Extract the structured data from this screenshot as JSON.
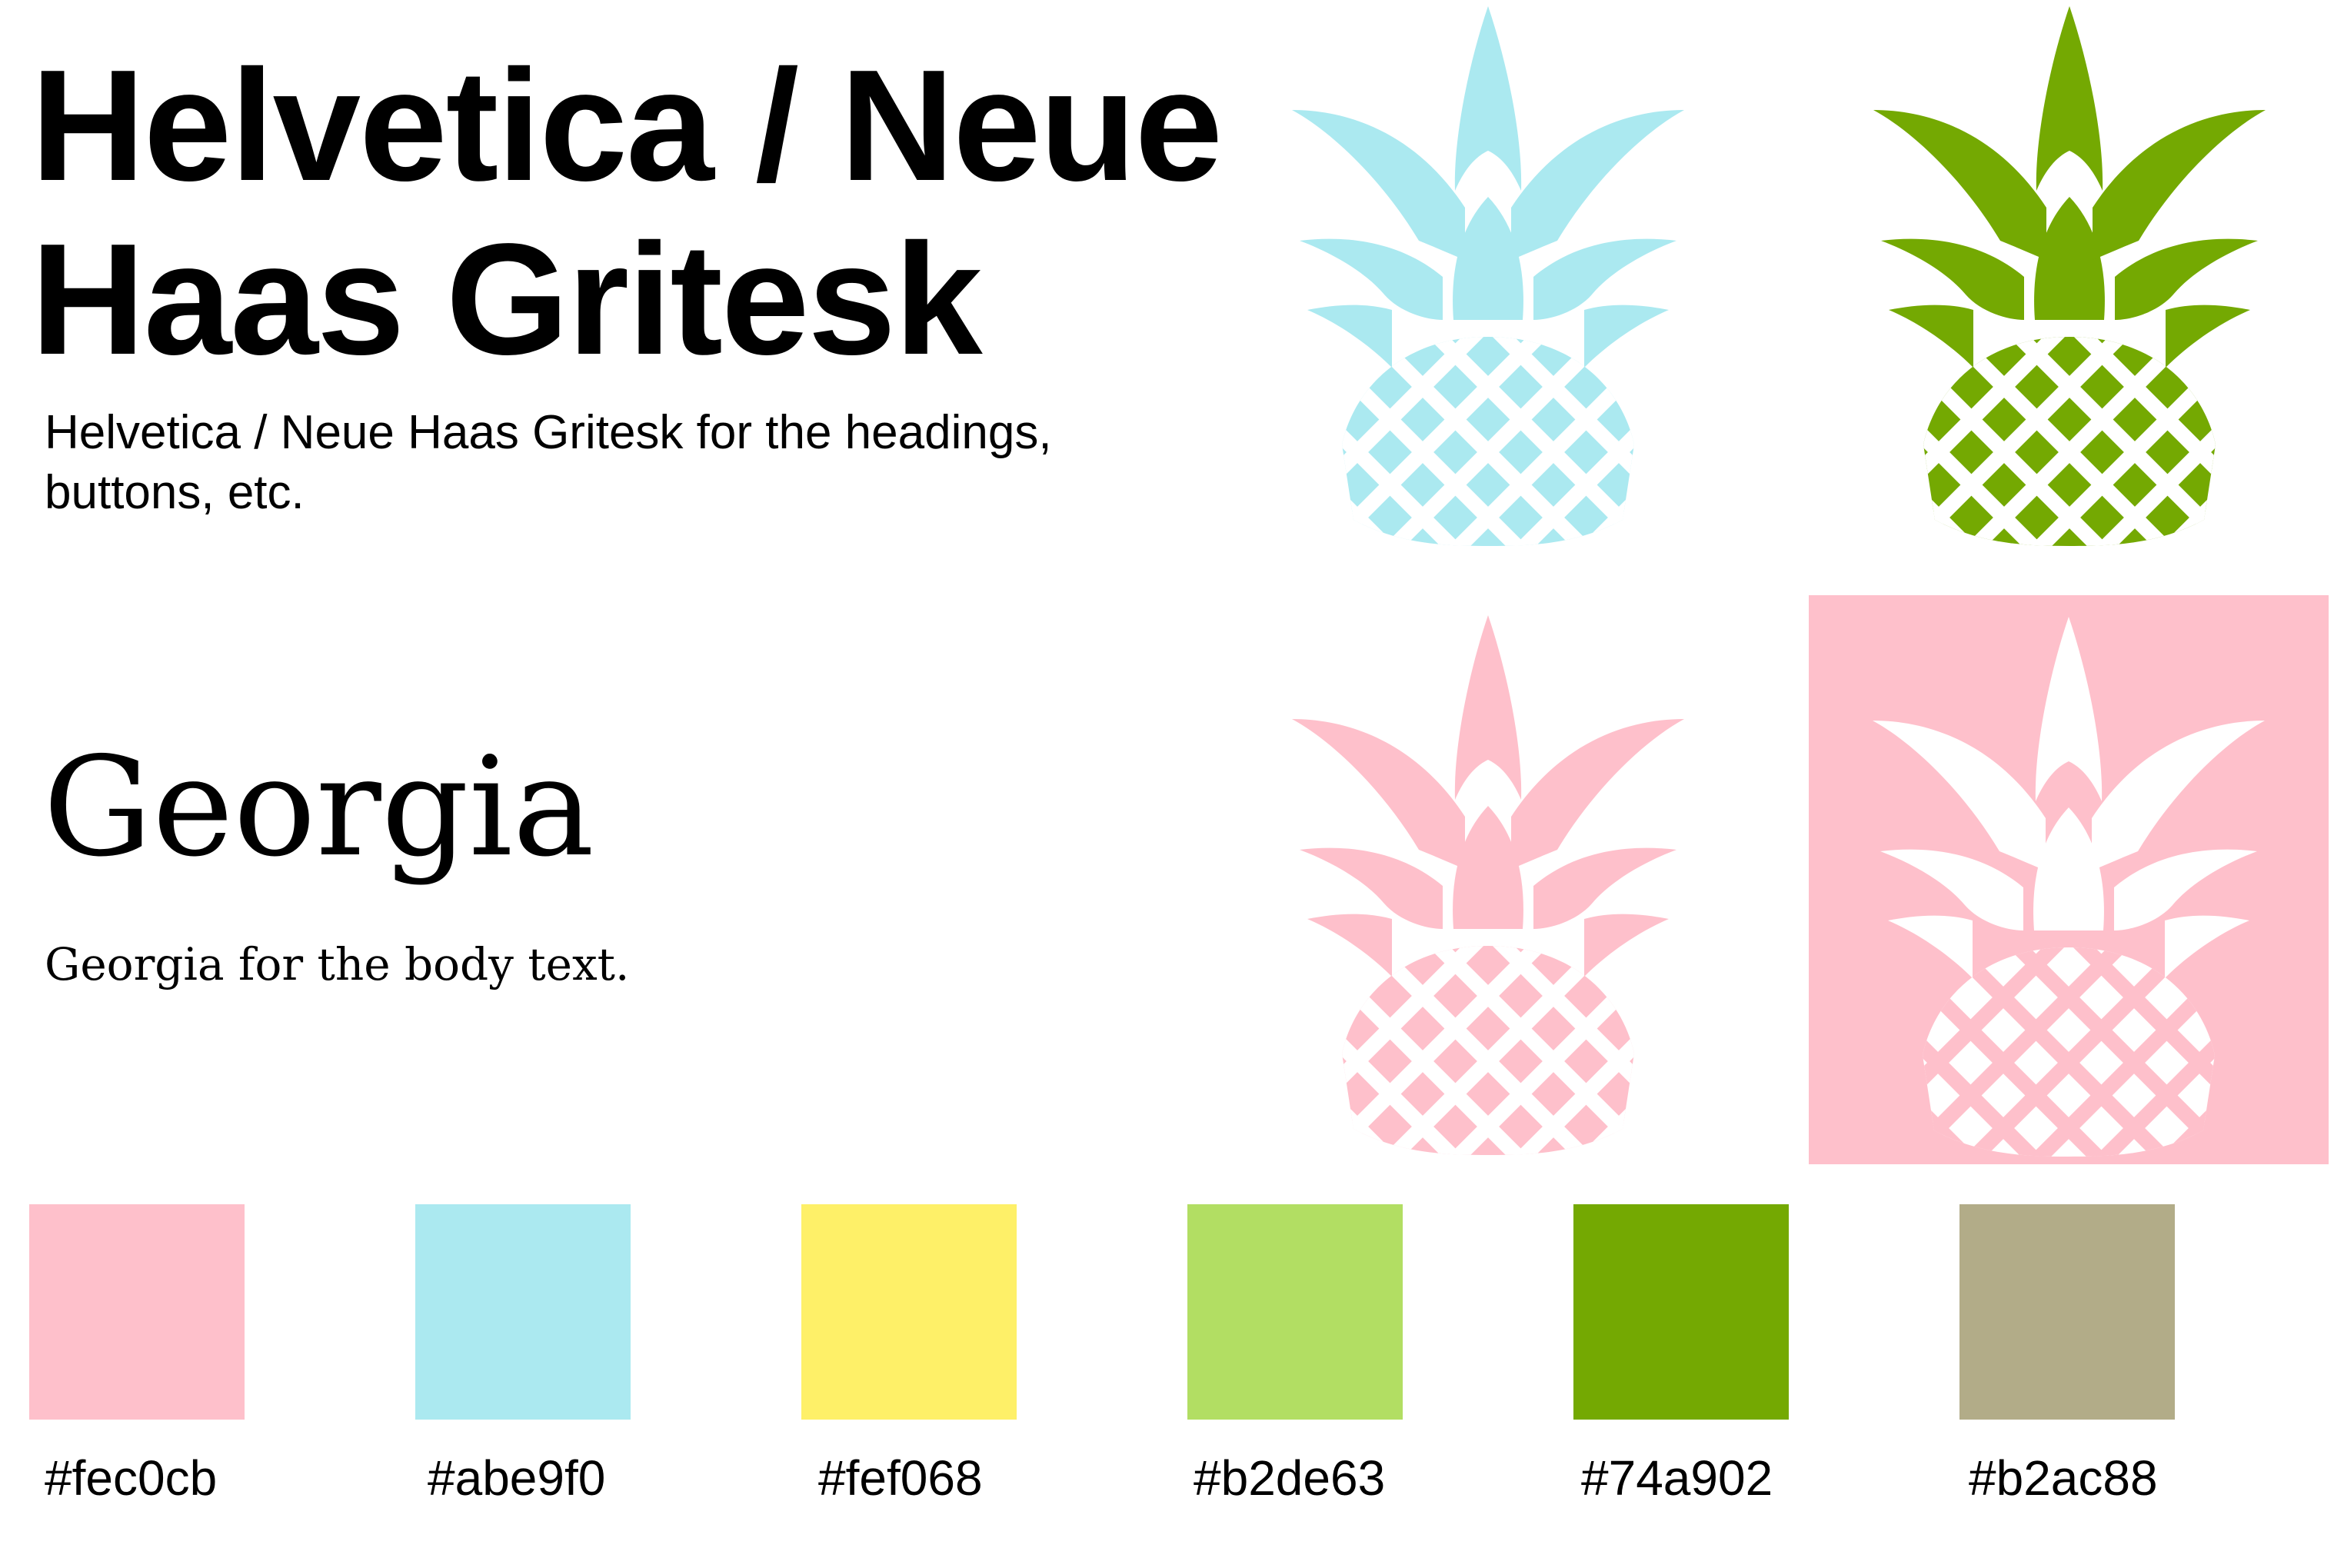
{
  "headings": {
    "sans_title_line1": "Helvetica / Neue",
    "sans_title_line2": "Haas Gritesk",
    "sans_description_line1": "Helvetica / Neue Haas Gritesk for the headings,",
    "sans_description_line2": "buttons, etc.",
    "serif_title": "Georgia",
    "serif_description": "Georgia for the body text."
  },
  "logos": [
    {
      "variant": "blue",
      "fill": "#abe9f0",
      "icon": "pineapple-icon"
    },
    {
      "variant": "green",
      "fill": "#74a902",
      "icon": "pineapple-icon"
    },
    {
      "variant": "pink",
      "fill": "#fec0cb",
      "icon": "pineapple-icon"
    },
    {
      "variant": "inverse-on-pink",
      "fill": "#ffffff",
      "background": "#fec0cb",
      "icon": "pineapple-icon"
    }
  ],
  "palette": [
    {
      "hex": "#fec0cb"
    },
    {
      "hex": "#abe9f0"
    },
    {
      "hex": "#fef068"
    },
    {
      "hex": "#b2de63"
    },
    {
      "hex": "#74a902"
    },
    {
      "hex": "#b2ac88"
    }
  ]
}
